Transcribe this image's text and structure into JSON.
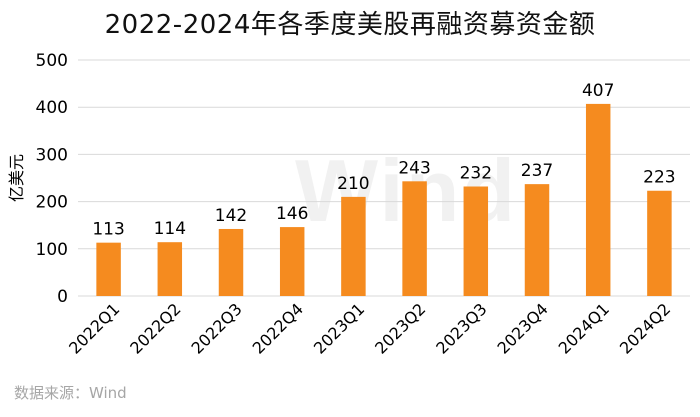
{
  "title": "2022-2024年各季度美股再融资募资金额",
  "source": "数据来源：Wind",
  "watermark": "Wind",
  "colors": {
    "bar": "#F58B1F",
    "grid": "#D9D9D9",
    "axis_text": "#000000"
  },
  "chart_data": {
    "type": "bar",
    "title": "2022-2024年各季度美股再融资募资金额",
    "xlabel": "",
    "ylabel": "亿美元",
    "ylim": [
      0,
      500
    ],
    "yticks": [
      0,
      100,
      200,
      300,
      400,
      500
    ],
    "grid": true,
    "categories": [
      "2022Q1",
      "2022Q2",
      "2022Q3",
      "2022Q4",
      "2023Q1",
      "2023Q2",
      "2023Q3",
      "2023Q4",
      "2024Q1",
      "2024Q2"
    ],
    "values": [
      113,
      114,
      142,
      146,
      210,
      243,
      232,
      237,
      407,
      223
    ],
    "data_labels": true
  }
}
